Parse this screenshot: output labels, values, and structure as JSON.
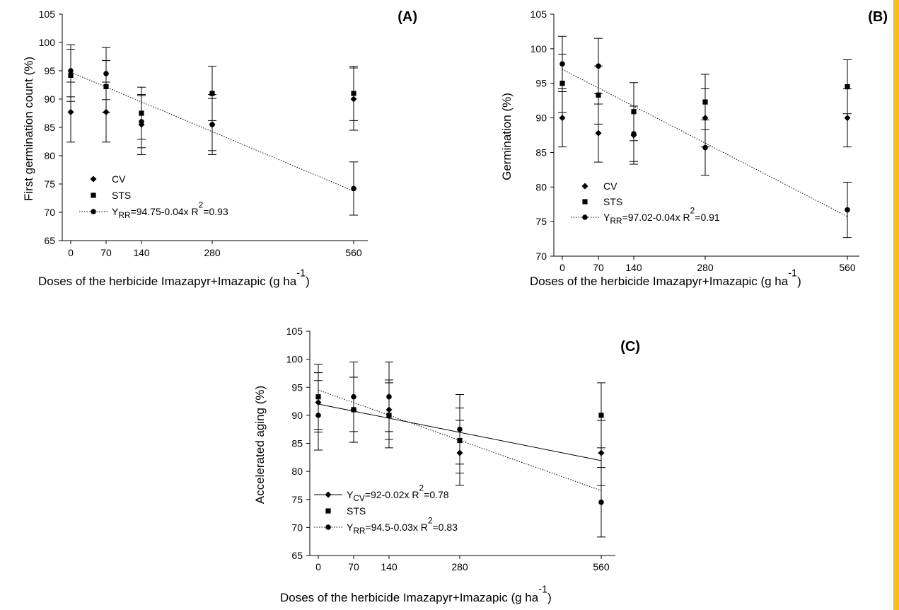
{
  "figure": {
    "accent_color": "#f6be16",
    "xlabel_main": "Doses of the herbicide Imazapyr+Imazapic (g ha",
    "xlabel_sup": "-1",
    "xlabel_end": ")"
  },
  "chart_data": [
    {
      "type": "scatter",
      "panel": "(A)",
      "ylabel": "First germination count (%)",
      "x_ticks": [
        0,
        70,
        140,
        280,
        560
      ],
      "y_ticks": [
        65,
        70,
        75,
        80,
        85,
        90,
        95,
        100,
        105
      ],
      "ylim": [
        65,
        105
      ],
      "legend_position": "bottom-left",
      "series": [
        {
          "name": "CV",
          "marker": "diamond",
          "x": [
            0,
            70,
            140,
            280,
            560
          ],
          "y": [
            87.7,
            87.7,
            85.5,
            85.5,
            90.0
          ],
          "err": [
            5.3,
            5.3,
            5.3,
            5.3,
            5.5
          ]
        },
        {
          "name": "STS",
          "marker": "square",
          "x": [
            0,
            70,
            140,
            280,
            560
          ],
          "y": [
            94.2,
            92.2,
            87.5,
            91.0,
            91.0
          ],
          "err": [
            4.6,
            4.6,
            4.6,
            4.8,
            4.8
          ]
        },
        {
          "name": "RR",
          "marker": "circle",
          "x": [
            0,
            70,
            140,
            280,
            560
          ],
          "y": [
            95.0,
            94.5,
            86.0,
            85.5,
            74.2
          ],
          "err": [
            4.6,
            4.6,
            4.6,
            4.6,
            4.7
          ]
        }
      ],
      "fits": [
        {
          "series": "RR",
          "intercept": 94.75,
          "slope": -0.0375,
          "style": "dotted",
          "label_prefix": "Y",
          "label_sub": "RR",
          "label_eq": "=94.75-0.04x  R",
          "label_sup": "2",
          "label_end": "=0.93"
        }
      ]
    },
    {
      "type": "scatter",
      "panel": "(B)",
      "ylabel": "Germination (%)",
      "x_ticks": [
        0,
        70,
        140,
        280,
        560
      ],
      "y_ticks": [
        70,
        75,
        80,
        85,
        90,
        95,
        100,
        105
      ],
      "ylim": [
        70,
        105
      ],
      "legend_position": "bottom-left",
      "series": [
        {
          "name": "CV",
          "marker": "diamond",
          "x": [
            0,
            70,
            140,
            280,
            560
          ],
          "y": [
            90.0,
            87.8,
            87.5,
            90.0,
            90.0
          ],
          "err": [
            4.2,
            4.2,
            4.2,
            4.2,
            4.2
          ]
        },
        {
          "name": "STS",
          "marker": "square",
          "x": [
            0,
            70,
            140,
            280,
            560
          ],
          "y": [
            95.0,
            93.3,
            90.9,
            92.3,
            94.5
          ],
          "err": [
            4.2,
            4.2,
            4.2,
            4.0,
            3.9
          ]
        },
        {
          "name": "RR",
          "marker": "circle",
          "x": [
            0,
            70,
            140,
            280,
            560
          ],
          "y": [
            97.8,
            97.5,
            87.7,
            85.7,
            76.7
          ],
          "err": [
            4.0,
            4.0,
            4.0,
            4.0,
            4.0
          ]
        }
      ],
      "fits": [
        {
          "series": "RR",
          "intercept": 97.02,
          "slope": -0.038,
          "style": "dotted",
          "label_prefix": "Y",
          "label_sub": "RR",
          "label_eq": "=97.02-0.04x  R",
          "label_sup": "2",
          "label_end": "=0.91"
        }
      ]
    },
    {
      "type": "scatter",
      "panel": "(C)",
      "ylabel": "Accelerated aging (%)",
      "x_ticks": [
        0,
        70,
        140,
        280,
        560
      ],
      "y_ticks": [
        65,
        70,
        75,
        80,
        85,
        90,
        95,
        100,
        105
      ],
      "ylim": [
        65,
        105
      ],
      "legend_position": "bottom-left",
      "series": [
        {
          "name": "CV",
          "marker": "diamond",
          "x": [
            0,
            70,
            140,
            280,
            560
          ],
          "y": [
            92.3,
            91.0,
            91.0,
            83.3,
            83.3
          ],
          "err": [
            5.3,
            5.8,
            5.3,
            5.8,
            5.8
          ]
        },
        {
          "name": "STS",
          "marker": "square",
          "x": [
            0,
            70,
            140,
            280,
            560
          ],
          "y": [
            93.3,
            91.0,
            90.0,
            85.5,
            90.0
          ],
          "err": [
            5.8,
            5.8,
            5.8,
            5.8,
            5.8
          ]
        },
        {
          "name": "RR",
          "marker": "circle",
          "x": [
            0,
            70,
            140,
            280,
            560
          ],
          "y": [
            90.0,
            93.3,
            93.3,
            87.5,
            74.5
          ],
          "err": [
            6.2,
            6.2,
            6.2,
            6.2,
            6.2
          ]
        }
      ],
      "fits": [
        {
          "series": "CV",
          "intercept": 92.0,
          "slope": -0.018,
          "style": "solid",
          "label_prefix": "Y",
          "label_sub": "CV",
          "label_eq": "=92-0.02x  R",
          "label_sup": "2",
          "label_end": "=0.78"
        },
        {
          "series": "RR",
          "intercept": 94.5,
          "slope": -0.032,
          "style": "dotted",
          "label_prefix": "Y",
          "label_sub": "RR",
          "label_eq": "=94.5-0.03x  R",
          "label_sup": "2",
          "label_end": "=0.83"
        }
      ]
    }
  ]
}
